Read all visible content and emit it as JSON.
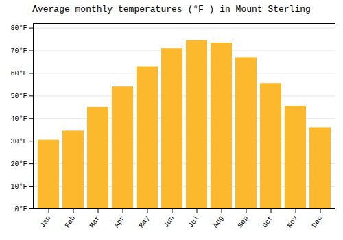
{
  "chart_data": {
    "type": "bar",
    "title": "Average monthly temperatures (°F ) in Mount Sterling",
    "categories": [
      "Jan",
      "Feb",
      "Mar",
      "Apr",
      "May",
      "Jun",
      "Jul",
      "Aug",
      "Sep",
      "Oct",
      "Nov",
      "Dec"
    ],
    "values": [
      30.5,
      34.5,
      45.0,
      54.0,
      63.0,
      71.0,
      74.5,
      73.5,
      67.0,
      55.5,
      45.5,
      36.0
    ],
    "color": "#FDB92E",
    "ylim": [
      0,
      82
    ],
    "yticks": [
      {
        "value": 0,
        "label": "0°F"
      },
      {
        "value": 10,
        "label": "10°F"
      },
      {
        "value": 20,
        "label": "20°F"
      },
      {
        "value": 30,
        "label": "30°F"
      },
      {
        "value": 40,
        "label": "40°F"
      },
      {
        "value": 50,
        "label": "50°F"
      },
      {
        "value": 60,
        "label": "60°F"
      },
      {
        "value": 70,
        "label": "70°F"
      },
      {
        "value": 80,
        "label": "80°F"
      }
    ],
    "grid": true
  }
}
